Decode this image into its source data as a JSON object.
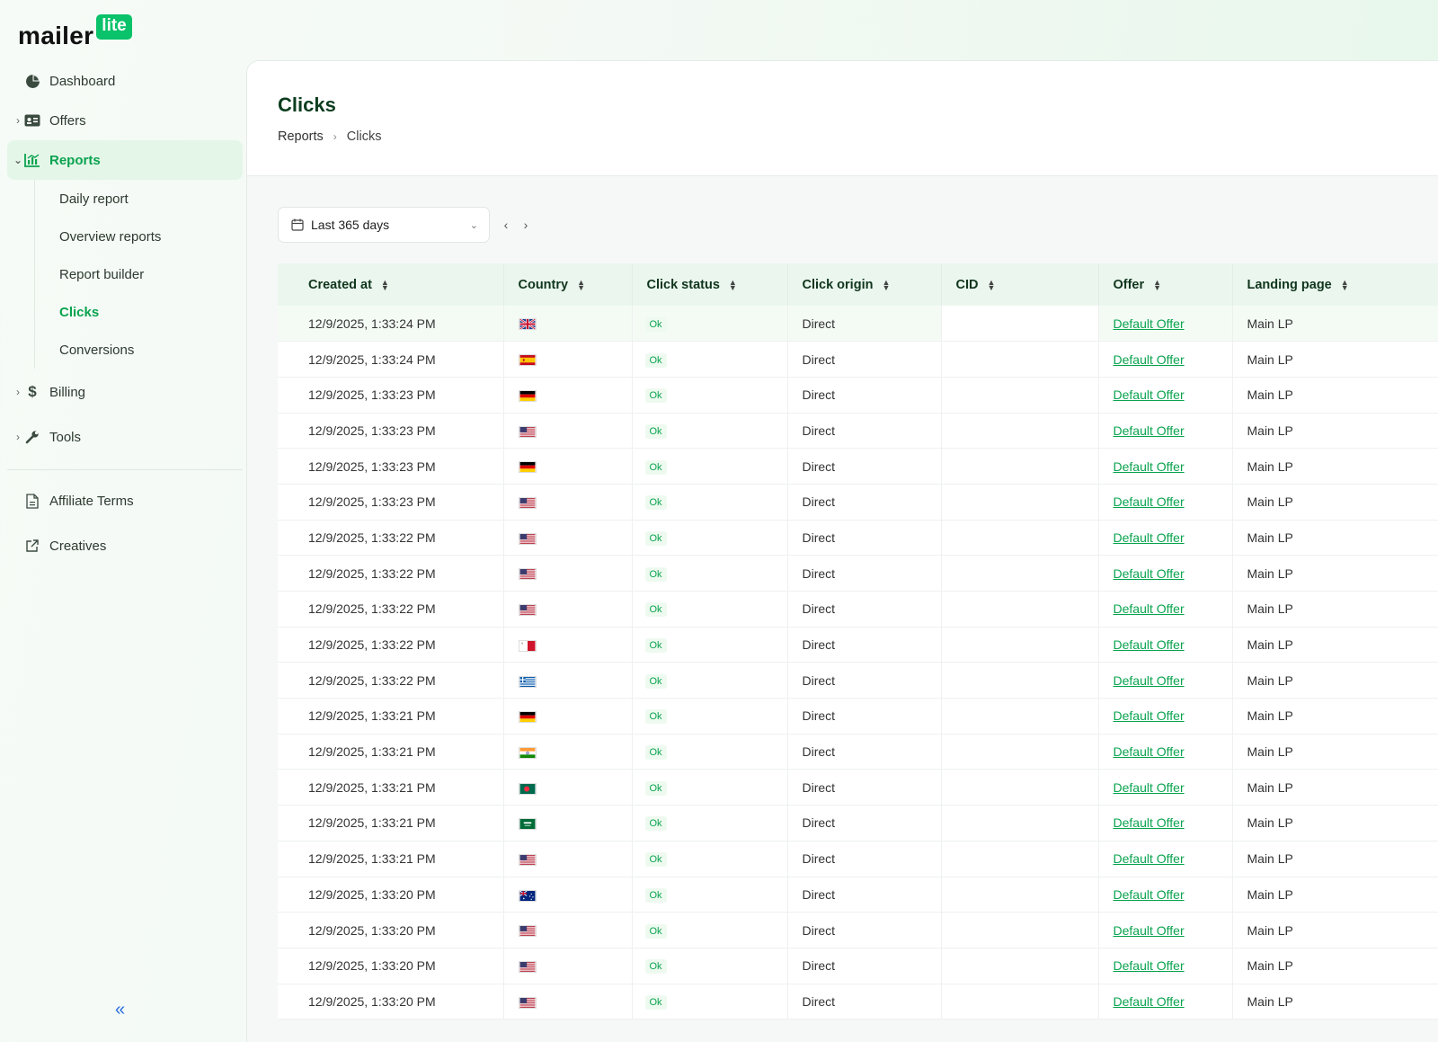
{
  "brand": {
    "name": "mailer",
    "badge": "lite"
  },
  "sidebar": {
    "items": [
      {
        "label": "Dashboard",
        "icon": "pie-chart-icon",
        "chevron": ""
      },
      {
        "label": "Offers",
        "icon": "id-card-icon",
        "chevron": "›"
      },
      {
        "label": "Reports",
        "icon": "bar-chart-icon",
        "chevron": "⌄",
        "active": true
      }
    ],
    "report_subitems": [
      {
        "label": "Daily report"
      },
      {
        "label": "Overview reports"
      },
      {
        "label": "Report builder"
      },
      {
        "label": "Clicks",
        "active": true
      },
      {
        "label": "Conversions"
      }
    ],
    "more_items": [
      {
        "label": "Billing",
        "icon": "dollar-icon",
        "chevron": "›"
      },
      {
        "label": "Tools",
        "icon": "wrench-icon",
        "chevron": "›"
      }
    ],
    "bottom_items": [
      {
        "label": "Affiliate Terms",
        "icon": "document-icon"
      },
      {
        "label": "Creatives",
        "icon": "external-link-icon"
      }
    ],
    "collapse_label": "«"
  },
  "page": {
    "title": "Clicks",
    "breadcrumb": [
      "Reports",
      "Clicks"
    ]
  },
  "filters": {
    "date_range": "Last 365 days"
  },
  "table": {
    "columns": [
      "Created at",
      "Country",
      "Click status",
      "Click origin",
      "CID",
      "Offer",
      "Landing page"
    ],
    "rows": [
      {
        "created": "12/9/2025, 1:33:24 PM",
        "country": "gb",
        "status": "Ok",
        "origin": "Direct",
        "cid": "",
        "offer": "Default Offer",
        "lp": "Main LP"
      },
      {
        "created": "12/9/2025, 1:33:24 PM",
        "country": "es",
        "status": "Ok",
        "origin": "Direct",
        "cid": "",
        "offer": "Default Offer",
        "lp": "Main LP"
      },
      {
        "created": "12/9/2025, 1:33:23 PM",
        "country": "de",
        "status": "Ok",
        "origin": "Direct",
        "cid": "",
        "offer": "Default Offer",
        "lp": "Main LP"
      },
      {
        "created": "12/9/2025, 1:33:23 PM",
        "country": "us",
        "status": "Ok",
        "origin": "Direct",
        "cid": "",
        "offer": "Default Offer",
        "lp": "Main LP"
      },
      {
        "created": "12/9/2025, 1:33:23 PM",
        "country": "de",
        "status": "Ok",
        "origin": "Direct",
        "cid": "",
        "offer": "Default Offer",
        "lp": "Main LP"
      },
      {
        "created": "12/9/2025, 1:33:23 PM",
        "country": "us",
        "status": "Ok",
        "origin": "Direct",
        "cid": "",
        "offer": "Default Offer",
        "lp": "Main LP"
      },
      {
        "created": "12/9/2025, 1:33:22 PM",
        "country": "us",
        "status": "Ok",
        "origin": "Direct",
        "cid": "",
        "offer": "Default Offer",
        "lp": "Main LP"
      },
      {
        "created": "12/9/2025, 1:33:22 PM",
        "country": "us",
        "status": "Ok",
        "origin": "Direct",
        "cid": "",
        "offer": "Default Offer",
        "lp": "Main LP"
      },
      {
        "created": "12/9/2025, 1:33:22 PM",
        "country": "us",
        "status": "Ok",
        "origin": "Direct",
        "cid": "",
        "offer": "Default Offer",
        "lp": "Main LP"
      },
      {
        "created": "12/9/2025, 1:33:22 PM",
        "country": "mt",
        "status": "Ok",
        "origin": "Direct",
        "cid": "",
        "offer": "Default Offer",
        "lp": "Main LP"
      },
      {
        "created": "12/9/2025, 1:33:22 PM",
        "country": "gr",
        "status": "Ok",
        "origin": "Direct",
        "cid": "",
        "offer": "Default Offer",
        "lp": "Main LP"
      },
      {
        "created": "12/9/2025, 1:33:21 PM",
        "country": "de",
        "status": "Ok",
        "origin": "Direct",
        "cid": "",
        "offer": "Default Offer",
        "lp": "Main LP"
      },
      {
        "created": "12/9/2025, 1:33:21 PM",
        "country": "in",
        "status": "Ok",
        "origin": "Direct",
        "cid": "",
        "offer": "Default Offer",
        "lp": "Main LP"
      },
      {
        "created": "12/9/2025, 1:33:21 PM",
        "country": "bd",
        "status": "Ok",
        "origin": "Direct",
        "cid": "",
        "offer": "Default Offer",
        "lp": "Main LP"
      },
      {
        "created": "12/9/2025, 1:33:21 PM",
        "country": "sa",
        "status": "Ok",
        "origin": "Direct",
        "cid": "",
        "offer": "Default Offer",
        "lp": "Main LP"
      },
      {
        "created": "12/9/2025, 1:33:21 PM",
        "country": "us",
        "status": "Ok",
        "origin": "Direct",
        "cid": "",
        "offer": "Default Offer",
        "lp": "Main LP"
      },
      {
        "created": "12/9/2025, 1:33:20 PM",
        "country": "au",
        "status": "Ok",
        "origin": "Direct",
        "cid": "",
        "offer": "Default Offer",
        "lp": "Main LP"
      },
      {
        "created": "12/9/2025, 1:33:20 PM",
        "country": "us",
        "status": "Ok",
        "origin": "Direct",
        "cid": "",
        "offer": "Default Offer",
        "lp": "Main LP"
      },
      {
        "created": "12/9/2025, 1:33:20 PM",
        "country": "us",
        "status": "Ok",
        "origin": "Direct",
        "cid": "",
        "offer": "Default Offer",
        "lp": "Main LP"
      },
      {
        "created": "12/9/2025, 1:33:20 PM",
        "country": "us",
        "status": "Ok",
        "origin": "Direct",
        "cid": "",
        "offer": "Default Offer",
        "lp": "Main LP"
      }
    ]
  },
  "colors": {
    "accent": "#0aa34f",
    "brand": "#09c269",
    "title": "#0b3d1e"
  }
}
